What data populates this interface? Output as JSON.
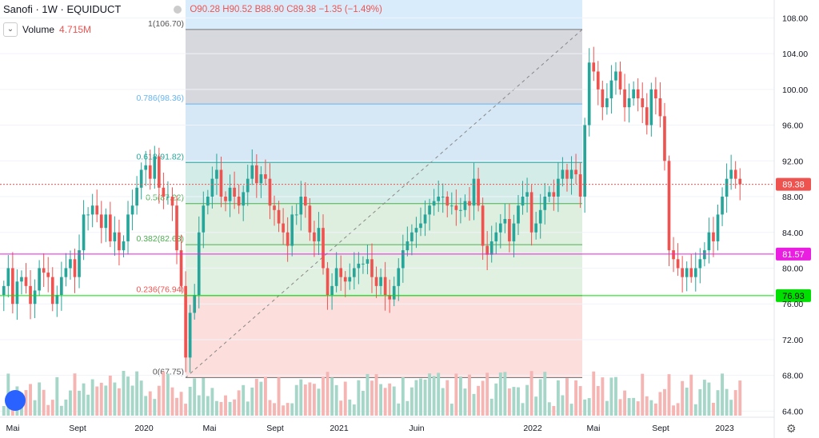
{
  "header": {
    "symbol": "Sanofi · 1W · EQUIDUCT",
    "open": "O90.28",
    "high": "H90.52",
    "low": "B88.90",
    "close": "C89.38",
    "change": "−1.35 (−1.49%)",
    "volume_label": "Volume",
    "volume_value": "4.715M"
  },
  "colors": {
    "up": "#26a69a",
    "down": "#ef5350",
    "accent": "#e91ee0",
    "green_line": "#00e000"
  },
  "chart_data": {
    "type": "candlestick",
    "y_ticks": [
      "108.00",
      "104.00",
      "100.00",
      "96.00",
      "92.00",
      "88.00",
      "84.00",
      "80.00",
      "76.00",
      "72.00",
      "68.00",
      "64.00"
    ],
    "x_ticks": [
      "Mai",
      "Sept",
      "2020",
      "Mai",
      "Sept",
      "2021",
      "Juin",
      "2022",
      "Mai",
      "Sept",
      "2023"
    ],
    "ylim": [
      63.5,
      110
    ],
    "fib_levels": [
      {
        "label": "1(106.70)",
        "value": 106.7
      },
      {
        "label": "0.786(98.36)",
        "value": 98.36
      },
      {
        "label": "0.618(91.82)",
        "value": 91.82
      },
      {
        "label": "0.5(87.22)",
        "value": 87.22
      },
      {
        "label": "0.382(82.63)",
        "value": 82.63
      },
      {
        "label": "0.236(76.94)",
        "value": 76.94
      },
      {
        "label": "0(67.75)",
        "value": 67.75
      }
    ],
    "price_labels": [
      {
        "text": "89.38",
        "value": 89.38,
        "color": "#ef5350"
      },
      {
        "text": "81.57",
        "value": 81.57,
        "color": "#e91ee0"
      },
      {
        "text": "76.93",
        "value": 76.93,
        "color": "#00e000"
      }
    ],
    "series": [
      {
        "name": "Close",
        "values": [
          78,
          80,
          76,
          78.5,
          79,
          78,
          76,
          77.5,
          80,
          79.5,
          79,
          76,
          77,
          79,
          80,
          81,
          79,
          82,
          86,
          86,
          87,
          86,
          84.5,
          86,
          83,
          84,
          82,
          83,
          86,
          87,
          89,
          91,
          91.5,
          90,
          92.5,
          89,
          88,
          88,
          87,
          82,
          78,
          70,
          75,
          77,
          84,
          87,
          88,
          90,
          91,
          88,
          87.5,
          89,
          88,
          87,
          88.5,
          90,
          91.5,
          89.5,
          90.5,
          90,
          87,
          86.5,
          85,
          84,
          82.5,
          86,
          86,
          88,
          87,
          84,
          83,
          84.5,
          80,
          77,
          78,
          80,
          79,
          78.5,
          79,
          80,
          80.5,
          80.5,
          81,
          79,
          78,
          79,
          77,
          76.5,
          78,
          80,
          82,
          83,
          84,
          84.5,
          85,
          86,
          87,
          87.5,
          88,
          88,
          87,
          87,
          86.5,
          86.5,
          87.5,
          87,
          90,
          87,
          82.5,
          81.5,
          83,
          84,
          85,
          85.5,
          83,
          85,
          87,
          88,
          88.5,
          84,
          85,
          86.5,
          88,
          88.5,
          88,
          90,
          91,
          90,
          91,
          90.5,
          88,
          96,
          103,
          102,
          100,
          98,
          99,
          101,
          102,
          100,
          98,
          99,
          100,
          99,
          98,
          96,
          100,
          99,
          97,
          92,
          82,
          81,
          80,
          79,
          80,
          79,
          80,
          81,
          82,
          84,
          83,
          86,
          88,
          90,
          91,
          90,
          89.38
        ]
      }
    ]
  }
}
